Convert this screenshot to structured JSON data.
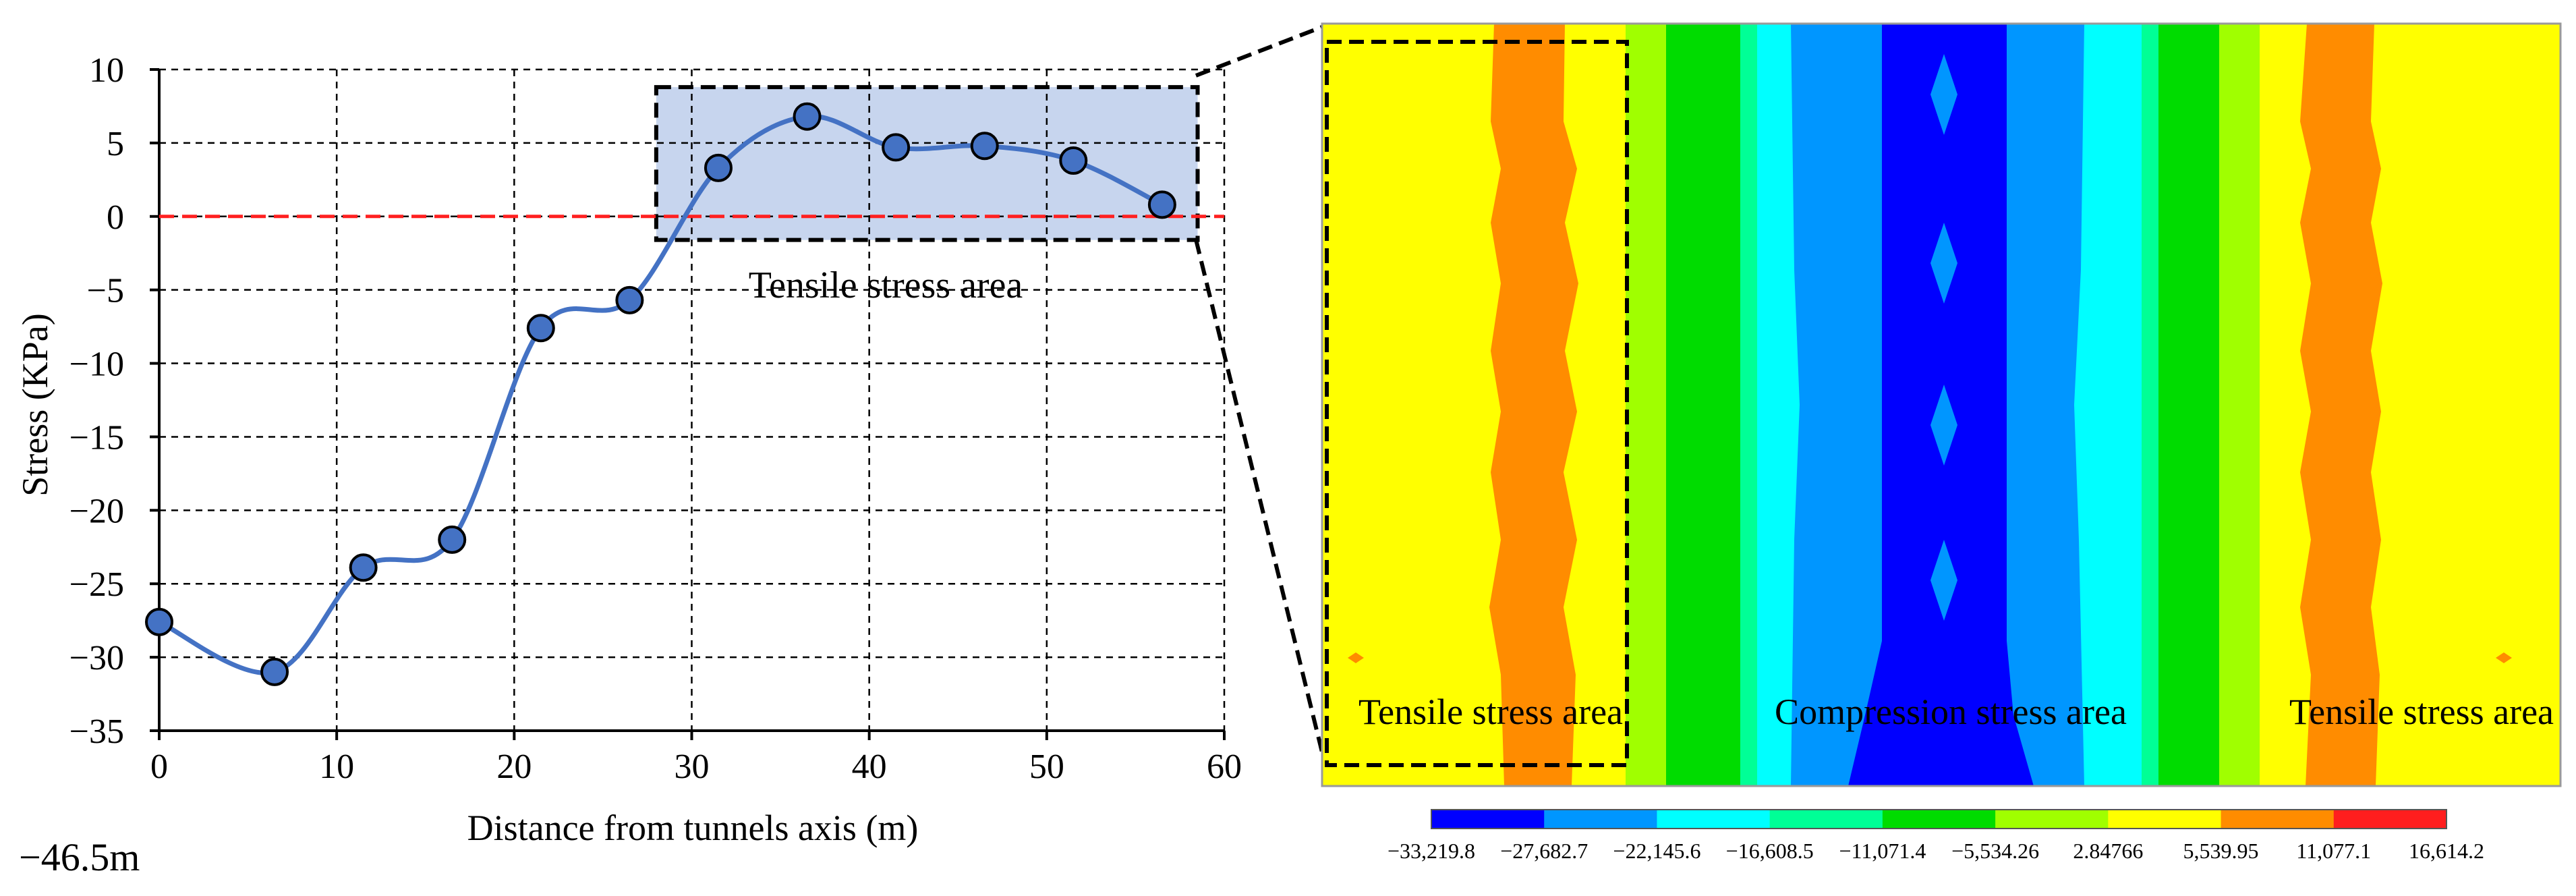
{
  "chart_data": {
    "type": "line",
    "xlabel": "Distance from tunnels axis (m)",
    "ylabel": "Stress  (KPa)",
    "xlim": [
      0,
      60
    ],
    "ylim": [
      -35,
      10
    ],
    "x_ticks": [
      0,
      10,
      20,
      30,
      40,
      50,
      60
    ],
    "y_ticks": [
      10,
      5,
      0,
      -5,
      -10,
      -15,
      -20,
      -25,
      -30,
      -35
    ],
    "x_tick_labels": [
      "0",
      "10",
      "20",
      "30",
      "40",
      "50",
      "60"
    ],
    "y_tick_labels": [
      "10",
      "5",
      "0",
      "−5",
      "−10",
      "−15",
      "−20",
      "−25",
      "−30",
      "−35"
    ],
    "grid": "dashed",
    "reference_line": {
      "y": 0,
      "style": "dashed",
      "color": "#ff2020"
    },
    "series": [
      {
        "name": "Stress",
        "color": "#4472c4",
        "x": [
          0,
          6.5,
          11.5,
          16.5,
          21.5,
          26.5,
          31.5,
          36.5,
          41.5,
          46.5,
          51.5,
          56.5
        ],
        "y": [
          -27.6,
          -31.0,
          -23.9,
          -22.0,
          -7.6,
          -5.7,
          3.3,
          6.8,
          4.7,
          4.8,
          3.8,
          0.8
        ]
      }
    ],
    "highlight_region": {
      "x": [
        28,
        58.5
      ],
      "y": [
        -1.6,
        8.8
      ],
      "label": "Tensile stress area"
    },
    "depth_label": "−46.5m"
  },
  "contour_panel": {
    "labels": [
      "Tensile stress area",
      "Compression stress area",
      "Tensile stress area"
    ],
    "colorbar": {
      "colors": [
        "#0000ff",
        "#0096ff",
        "#00ffff",
        "#00ff96",
        "#00dc00",
        "#a0ff00",
        "#ffff00",
        "#ff8c00",
        "#ff1e1e"
      ],
      "tick_labels": [
        "−33,219.8",
        "−27,682.7",
        "−22,145.6",
        "−16,608.5",
        "−11,071.4",
        "−5,534.26",
        "2.84766",
        "5,539.95",
        "11,077.1",
        "16,614.2"
      ]
    }
  },
  "colors": {
    "line": "#4472c4",
    "marker_fill": "#4472c4",
    "highlight_fill": "#c7d5ee",
    "zero_line": "#ff2020"
  }
}
